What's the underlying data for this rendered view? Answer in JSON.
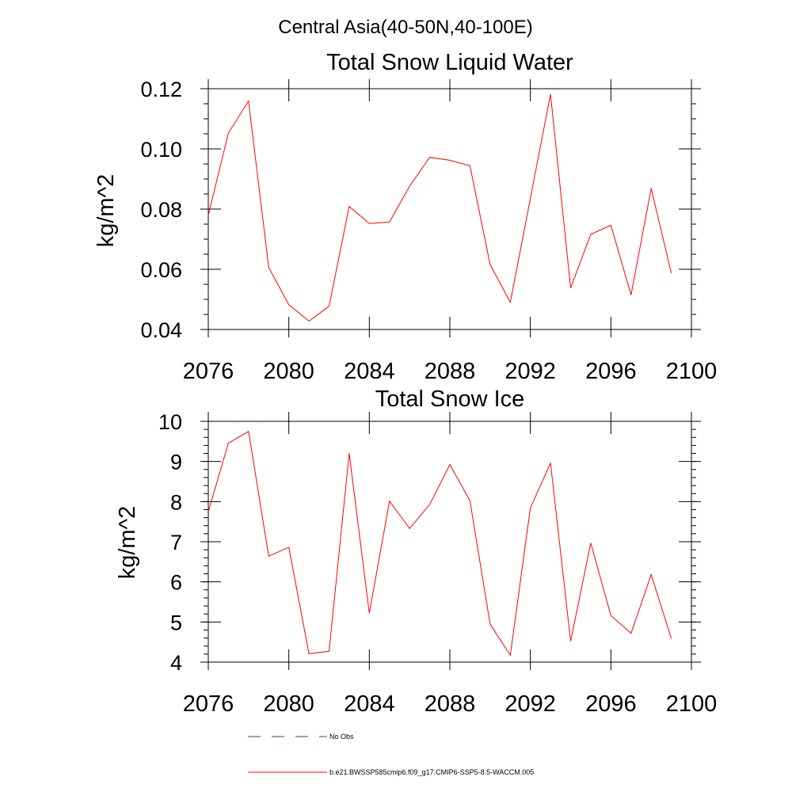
{
  "figure_title": "Central Asia(40-50N,40-100E)",
  "colors": {
    "series": "#ff0000",
    "no_obs": "#404080",
    "axis": "#000000"
  },
  "legend": {
    "placement": "bottom",
    "entries": [
      {
        "label": "No Obs",
        "style": "dashed",
        "color": "#404080"
      },
      {
        "label": "b.e21.BWSSP585cmip6.f09_g17.CMIP6-SSP5-8.5-WACCM.005",
        "style": "solid",
        "color": "#ff0000"
      }
    ]
  },
  "chart_data": [
    {
      "type": "line",
      "title": "Total Snow Liquid Water",
      "xlabel": "",
      "ylabel": "kg/m^2",
      "xlim": [
        2076,
        2100
      ],
      "ylim": [
        0.04,
        0.12
      ],
      "xticks": [
        2076,
        2080,
        2084,
        2088,
        2092,
        2096,
        2100
      ],
      "xtick_labels": [
        "2076",
        "2080",
        "2084",
        "2088",
        "2092",
        "2096",
        "2100"
      ],
      "yticks": [
        0.04,
        0.06,
        0.08,
        0.1,
        0.12
      ],
      "ytick_labels": [
        "0.04",
        "0.06",
        "0.08",
        "0.10",
        "0.12"
      ],
      "yminor_step": 0.005,
      "grid": false,
      "x": [
        2076,
        2077,
        2078,
        2079,
        2080,
        2081,
        2082,
        2083,
        2084,
        2085,
        2086,
        2087,
        2088,
        2089,
        2090,
        2091,
        2092,
        2093,
        2094,
        2095,
        2096,
        2097,
        2098,
        2099
      ],
      "series": [
        {
          "name": "b.e21.BWSSP585cmip6.f09_g17.CMIP6-SSP5-8.5-WACCM.005",
          "values": [
            0.078,
            0.1053,
            0.1159,
            0.0606,
            0.0482,
            0.0428,
            0.0477,
            0.0809,
            0.0752,
            0.0757,
            0.0876,
            0.0972,
            0.0962,
            0.0944,
            0.0616,
            0.049,
            0.0836,
            0.1182,
            0.0538,
            0.0716,
            0.0746,
            0.0515,
            0.0869,
            0.0587
          ]
        }
      ]
    },
    {
      "type": "line",
      "title": "Total Snow Ice",
      "xlabel": "",
      "ylabel": "kg/m^2",
      "xlim": [
        2076,
        2100
      ],
      "ylim": [
        4,
        10
      ],
      "xticks": [
        2076,
        2080,
        2084,
        2088,
        2092,
        2096,
        2100
      ],
      "xtick_labels": [
        "2076",
        "2080",
        "2084",
        "2088",
        "2092",
        "2096",
        "2100"
      ],
      "yticks": [
        4,
        5,
        6,
        7,
        8,
        9,
        10
      ],
      "ytick_labels": [
        "4",
        "5",
        "6",
        "7",
        "8",
        "9",
        "10"
      ],
      "yminor_step": 0.2,
      "grid": false,
      "x": [
        2076,
        2077,
        2078,
        2079,
        2080,
        2081,
        2082,
        2083,
        2084,
        2085,
        2086,
        2087,
        2088,
        2089,
        2090,
        2091,
        2092,
        2093,
        2094,
        2095,
        2096,
        2097,
        2098,
        2099
      ],
      "series": [
        {
          "name": "b.e21.BWSSP585cmip6.f09_g17.CMIP6-SSP5-8.5-WACCM.005",
          "values": [
            7.75,
            9.46,
            9.75,
            6.64,
            6.86,
            4.21,
            4.27,
            9.2,
            5.22,
            8.01,
            7.33,
            7.93,
            8.92,
            8.02,
            4.95,
            4.17,
            7.84,
            8.96,
            4.52,
            6.97,
            5.16,
            4.72,
            6.18,
            4.59
          ]
        }
      ]
    }
  ]
}
